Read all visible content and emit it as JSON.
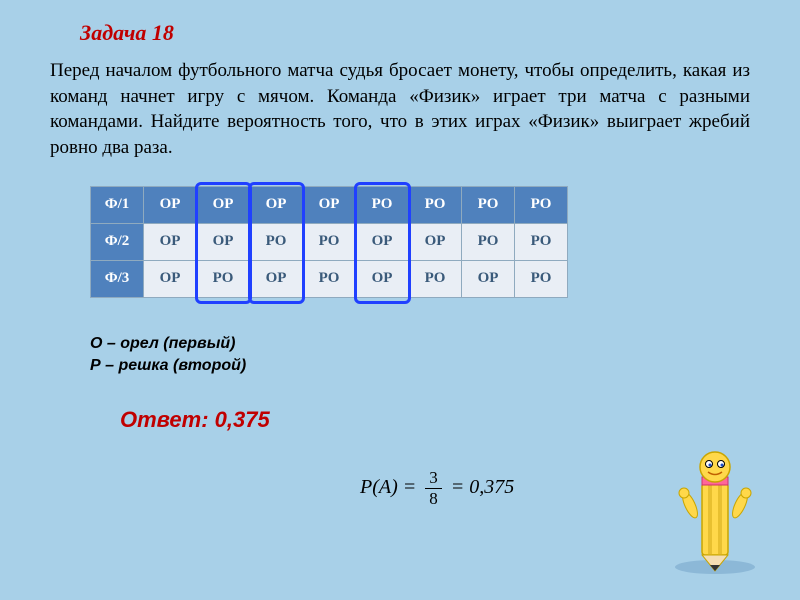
{
  "title": "Задача 18",
  "problem": "Перед началом футбольного матча судья бросает монету, чтобы определить, какая из команд начнет игру с мячом. Команда «Физик» играет три матча с разными командами. Найдите вероятность того, что в этих играх «Физик» выиграет жребий ровно два раза.",
  "table": {
    "headers": [
      "Ф/1",
      "ОР",
      "ОР",
      "ОР",
      "ОР",
      "РО",
      "РО",
      "РО",
      "РО"
    ],
    "rows": [
      [
        "Ф/2",
        "ОР",
        "ОР",
        "РО",
        "РО",
        "ОР",
        "ОР",
        "РО",
        "РО"
      ],
      [
        "Ф/3",
        "ОР",
        "РО",
        "ОР",
        "РО",
        "ОР",
        "РО",
        "ОР",
        "РО"
      ]
    ],
    "header_bg": "#4f81bd",
    "header_fg": "#ffffff",
    "cell_bg": "#e9eef5",
    "cell_fg": "#3a5a7a",
    "border": "#8faabf",
    "highlight_color": "#2040ff",
    "highlighted_cols": [
      2,
      3,
      5
    ]
  },
  "legend": {
    "line1": "О – орел (первый)",
    "line2": "Р – решка (второй)"
  },
  "formula": {
    "lhs": "P(A) = ",
    "num": "3",
    "den": "8",
    "rhs": " = 0,375"
  },
  "answer": "Ответ: 0,375",
  "colors": {
    "background": "#a8d0e8",
    "accent_red": "#c00000"
  }
}
